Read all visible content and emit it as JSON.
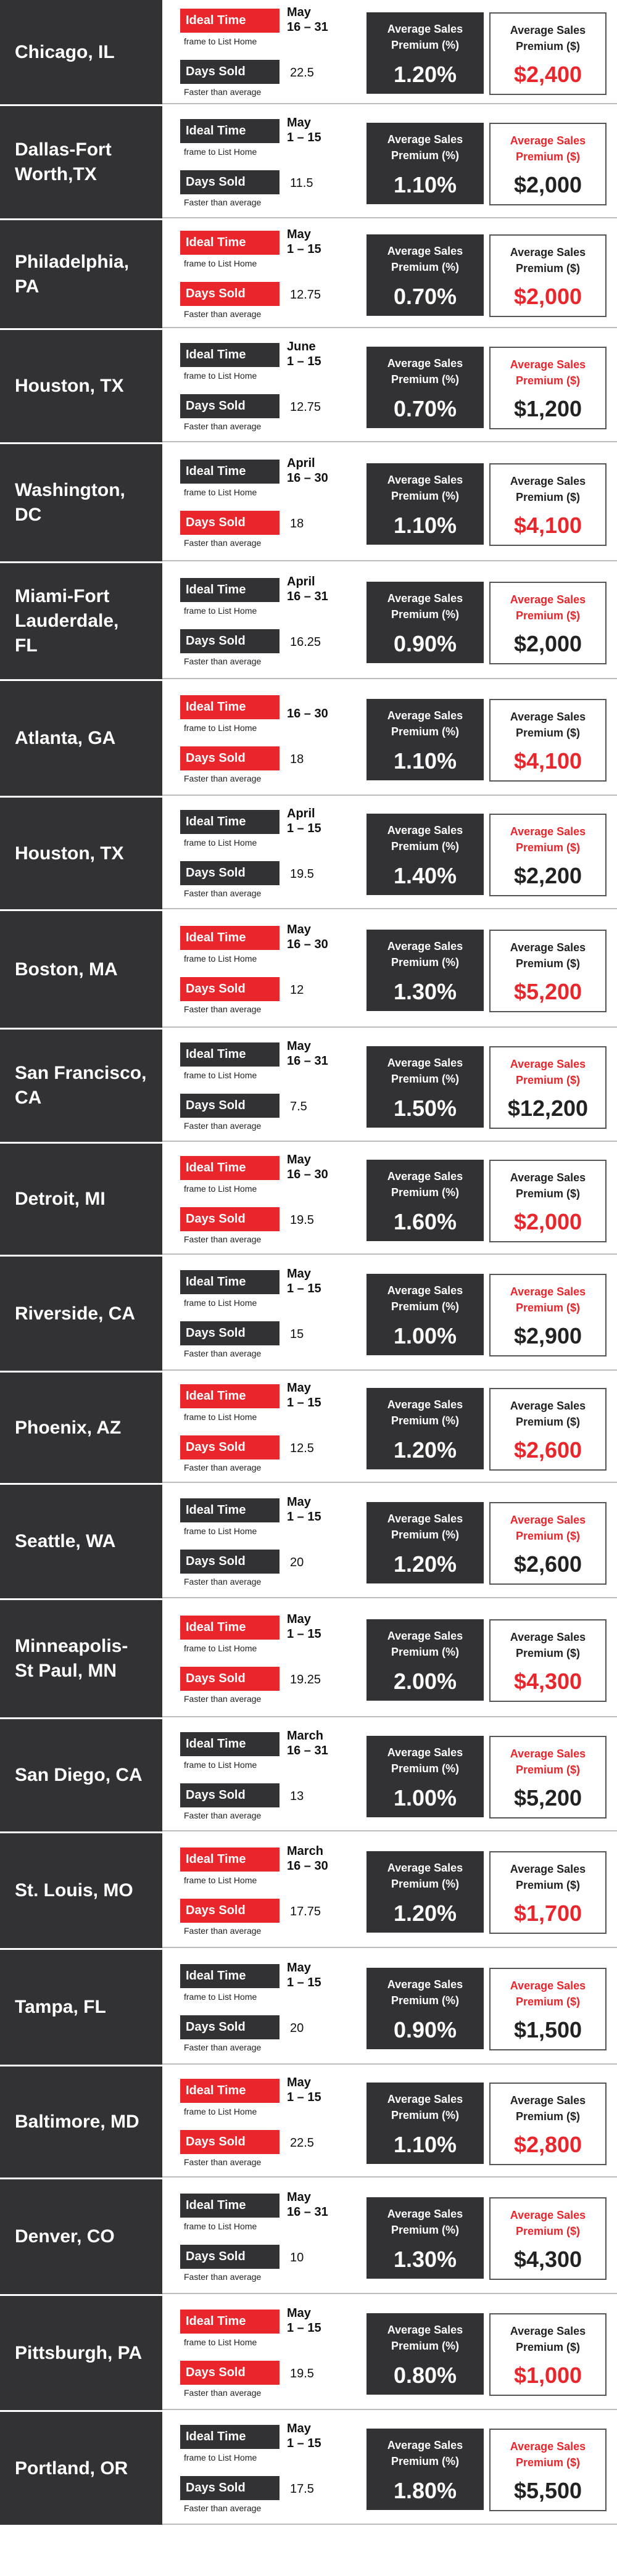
{
  "labels": {
    "ideal_time": "Ideal Time",
    "ideal_time_sub": "frame to List Home",
    "days_sold": "Days Sold",
    "days_sold_sub": "Faster than average",
    "pct_premium": [
      "Average Sales",
      "Premium (%)"
    ],
    "dollar_premium": [
      "Average Sales",
      "Premium ($)"
    ]
  },
  "colors": {
    "red": "#e8262b",
    "dark": "#323235"
  },
  "rows": [
    {
      "city": [
        "Chicago, IL"
      ],
      "time": [
        "May",
        "16 – 31"
      ],
      "days": "22.5",
      "pct": "1.20%",
      "dollars": "$2,400",
      "ideal_red": true,
      "days_red": false,
      "dlabel_red": false,
      "dval_red": true
    },
    {
      "city": [
        "Dallas-Fort",
        "Worth,TX"
      ],
      "time": [
        "May",
        "1 – 15"
      ],
      "days": "11.5",
      "pct": "1.10%",
      "dollars": "$2,000",
      "ideal_red": false,
      "days_red": false,
      "dlabel_red": true,
      "dval_red": false
    },
    {
      "city": [
        "Philadelphia,",
        "PA"
      ],
      "time": [
        "May",
        "1 – 15"
      ],
      "days": "12.75",
      "pct": "0.70%",
      "dollars": "$2,000",
      "ideal_red": true,
      "days_red": true,
      "dlabel_red": false,
      "dval_red": true
    },
    {
      "city": [
        "Houston, TX"
      ],
      "time": [
        "June",
        "1 – 15"
      ],
      "days": "12.75",
      "pct": "0.70%",
      "dollars": "$1,200",
      "ideal_red": false,
      "days_red": false,
      "dlabel_red": true,
      "dval_red": false
    },
    {
      "city": [
        "Washington,",
        "DC"
      ],
      "time": [
        "April",
        "16 – 30"
      ],
      "days": "18",
      "pct": "1.10%",
      "dollars": "$4,100",
      "ideal_red": false,
      "days_red": true,
      "dlabel_red": false,
      "dval_red": true
    },
    {
      "city": [
        "Miami-Fort",
        "Lauderdale,",
        "FL"
      ],
      "time": [
        "April",
        "16 – 31"
      ],
      "days": "16.25",
      "pct": "0.90%",
      "dollars": "$2,000",
      "ideal_red": false,
      "days_red": false,
      "dlabel_red": true,
      "dval_red": false
    },
    {
      "city": [
        "Atlanta, GA"
      ],
      "time": [
        "",
        "16 – 30"
      ],
      "days": "18",
      "pct": "1.10%",
      "dollars": "$4,100",
      "ideal_red": true,
      "days_red": true,
      "dlabel_red": false,
      "dval_red": true
    },
    {
      "city": [
        "Houston, TX"
      ],
      "time": [
        "April",
        "1 – 15"
      ],
      "days": "19.5",
      "pct": "1.40%",
      "dollars": "$2,200",
      "ideal_red": false,
      "days_red": false,
      "dlabel_red": true,
      "dval_red": false
    },
    {
      "city": [
        "Boston, MA"
      ],
      "time": [
        "May",
        "16 – 30"
      ],
      "days": "12",
      "pct": "1.30%",
      "dollars": "$5,200",
      "ideal_red": true,
      "days_red": true,
      "dlabel_red": false,
      "dval_red": true
    },
    {
      "city": [
        "San Francisco,",
        "CA"
      ],
      "time": [
        "May",
        "16 – 31"
      ],
      "days": "7.5",
      "pct": "1.50%",
      "dollars": "$12,200",
      "ideal_red": false,
      "days_red": false,
      "dlabel_red": true,
      "dval_red": false
    },
    {
      "city": [
        "Detroit, MI"
      ],
      "time": [
        "May",
        "16 – 30"
      ],
      "days": "19.5",
      "pct": "1.60%",
      "dollars": "$2,000",
      "ideal_red": true,
      "days_red": true,
      "dlabel_red": false,
      "dval_red": true
    },
    {
      "city": [
        "Riverside, CA"
      ],
      "time": [
        "May",
        "1 – 15"
      ],
      "days": "15",
      "pct": "1.00%",
      "dollars": "$2,900",
      "ideal_red": false,
      "days_red": false,
      "dlabel_red": true,
      "dval_red": false
    },
    {
      "city": [
        "Phoenix, AZ"
      ],
      "time": [
        "May",
        "1 – 15"
      ],
      "days": "12.5",
      "pct": "1.20%",
      "dollars": "$2,600",
      "ideal_red": true,
      "days_red": true,
      "dlabel_red": false,
      "dval_red": true
    },
    {
      "city": [
        "Seattle, WA"
      ],
      "time": [
        "May",
        "1 – 15"
      ],
      "days": "20",
      "pct": "1.20%",
      "dollars": "$2,600",
      "ideal_red": false,
      "days_red": false,
      "dlabel_red": true,
      "dval_red": false
    },
    {
      "city": [
        "Minneapolis-",
        "St Paul, MN"
      ],
      "time": [
        "May",
        "1 – 15"
      ],
      "days": "19.25",
      "pct": "2.00%",
      "dollars": "$4,300",
      "ideal_red": true,
      "days_red": true,
      "dlabel_red": false,
      "dval_red": true
    },
    {
      "city": [
        "San Diego, CA"
      ],
      "time": [
        "March",
        "16 – 31"
      ],
      "days": "13",
      "pct": "1.00%",
      "dollars": "$5,200",
      "ideal_red": false,
      "days_red": false,
      "dlabel_red": true,
      "dval_red": false
    },
    {
      "city": [
        "St. Louis, MO"
      ],
      "time": [
        "March",
        "16 – 30"
      ],
      "days": "17.75",
      "pct": "1.20%",
      "dollars": "$1,700",
      "ideal_red": true,
      "days_red": true,
      "dlabel_red": false,
      "dval_red": true
    },
    {
      "city": [
        "Tampa, FL"
      ],
      "time": [
        "May",
        "1 – 15"
      ],
      "days": "20",
      "pct": "0.90%",
      "dollars": "$1,500",
      "ideal_red": false,
      "days_red": false,
      "dlabel_red": true,
      "dval_red": false
    },
    {
      "city": [
        "Baltimore, MD"
      ],
      "time": [
        "May",
        "1 – 15"
      ],
      "days": "22.5",
      "pct": "1.10%",
      "dollars": "$2,800",
      "ideal_red": true,
      "days_red": true,
      "dlabel_red": false,
      "dval_red": true
    },
    {
      "city": [
        "Denver, CO"
      ],
      "time": [
        "May",
        "16 – 31"
      ],
      "days": "10",
      "pct": "1.30%",
      "dollars": "$4,300",
      "ideal_red": false,
      "days_red": false,
      "dlabel_red": true,
      "dval_red": false
    },
    {
      "city": [
        "Pittsburgh, PA"
      ],
      "time": [
        "May",
        "1 – 15"
      ],
      "days": "19.5",
      "pct": "0.80%",
      "dollars": "$1,000",
      "ideal_red": true,
      "days_red": true,
      "dlabel_red": false,
      "dval_red": true
    },
    {
      "city": [
        "Portland, OR"
      ],
      "time": [
        "May",
        "1 – 15"
      ],
      "days": "17.5",
      "pct": "1.80%",
      "dollars": "$5,500",
      "ideal_red": false,
      "days_red": false,
      "dlabel_red": true,
      "dval_red": false
    }
  ]
}
